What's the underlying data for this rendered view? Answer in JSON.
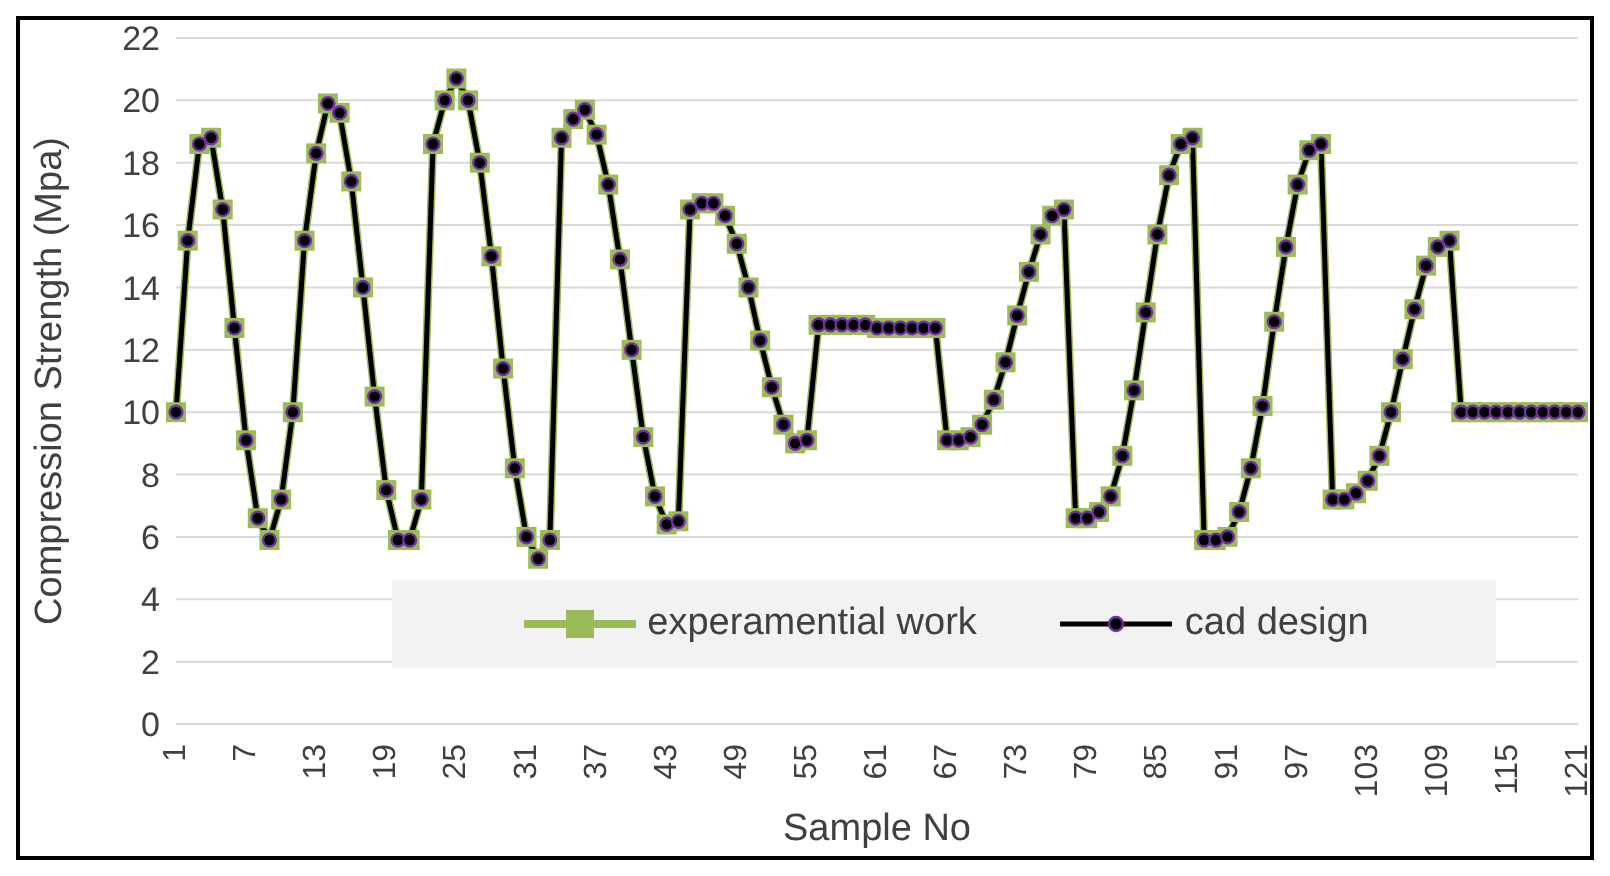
{
  "chart_data": {
    "type": "line",
    "xlabel": "Sample No",
    "ylabel": "Compression  Strength (Mpa)",
    "categories": [
      "1",
      null,
      null,
      null,
      null,
      null,
      "7",
      null,
      null,
      null,
      null,
      null,
      "13",
      null,
      null,
      null,
      null,
      null,
      "19",
      null,
      null,
      null,
      null,
      null,
      "25",
      null,
      null,
      null,
      null,
      null,
      "31",
      null,
      null,
      null,
      null,
      null,
      "37",
      null,
      null,
      null,
      null,
      null,
      "43",
      null,
      null,
      null,
      null,
      null,
      "49",
      null,
      null,
      null,
      null,
      null,
      "55",
      null,
      null,
      null,
      null,
      null,
      "61",
      null,
      null,
      null,
      null,
      null,
      "67",
      null,
      null,
      null,
      null,
      null,
      "73",
      null,
      null,
      null,
      null,
      null,
      "79",
      null,
      null,
      null,
      null,
      null,
      "85",
      null,
      null,
      null,
      null,
      null,
      "91",
      null,
      null,
      null,
      null,
      null,
      "97",
      null,
      null,
      null,
      null,
      null,
      "103",
      null,
      null,
      null,
      null,
      null,
      "109",
      null,
      null,
      null,
      null,
      null,
      "115",
      null,
      null,
      null,
      null,
      null,
      "121"
    ],
    "series": [
      {
        "name": "experamential work",
        "color": "#9bbb59",
        "marker": "square",
        "values": [
          10.0,
          15.5,
          18.6,
          18.8,
          16.5,
          12.7,
          9.1,
          6.6,
          5.9,
          7.2,
          10.0,
          15.5,
          18.3,
          19.9,
          19.6,
          17.4,
          14.0,
          10.5,
          7.5,
          5.9,
          5.9,
          7.2,
          18.6,
          20.0,
          20.7,
          20.0,
          18.0,
          15.0,
          11.4,
          8.2,
          6.0,
          5.3,
          5.9,
          18.8,
          19.4,
          19.7,
          18.9,
          17.3,
          14.9,
          12.0,
          9.2,
          7.3,
          6.4,
          6.5,
          16.5,
          16.7,
          16.7,
          16.3,
          15.4,
          14.0,
          12.3,
          10.8,
          9.6,
          9.0,
          9.1,
          12.8,
          12.8,
          12.8,
          12.8,
          12.8,
          12.7,
          12.7,
          12.7,
          12.7,
          12.7,
          12.7,
          9.1,
          9.1,
          9.2,
          9.6,
          10.4,
          11.6,
          13.1,
          14.5,
          15.7,
          16.3,
          16.5,
          6.6,
          6.6,
          6.8,
          7.3,
          8.6,
          10.7,
          13.2,
          15.7,
          17.6,
          18.6,
          18.8,
          5.9,
          5.9,
          6.0,
          6.8,
          8.2,
          10.2,
          12.9,
          15.3,
          17.3,
          18.4,
          18.6,
          7.2,
          7.2,
          7.4,
          7.8,
          8.6,
          10.0,
          11.7,
          13.3,
          14.7,
          15.3,
          15.5,
          10.0,
          10.0,
          10.0,
          10.0,
          10.0,
          10.0,
          10.0,
          10.0,
          10.0,
          10.0,
          10.0
        ]
      },
      {
        "name": "cad design",
        "color": "#000000",
        "marker": "circle",
        "values": [
          10.0,
          15.5,
          18.6,
          18.8,
          16.5,
          12.7,
          9.1,
          6.6,
          5.9,
          7.2,
          10.0,
          15.5,
          18.3,
          19.9,
          19.6,
          17.4,
          14.0,
          10.5,
          7.5,
          5.9,
          5.9,
          7.2,
          18.6,
          20.0,
          20.7,
          20.0,
          18.0,
          15.0,
          11.4,
          8.2,
          6.0,
          5.3,
          5.9,
          18.8,
          19.4,
          19.7,
          18.9,
          17.3,
          14.9,
          12.0,
          9.2,
          7.3,
          6.4,
          6.5,
          16.5,
          16.7,
          16.7,
          16.3,
          15.4,
          14.0,
          12.3,
          10.8,
          9.6,
          9.0,
          9.1,
          12.8,
          12.8,
          12.8,
          12.8,
          12.8,
          12.7,
          12.7,
          12.7,
          12.7,
          12.7,
          12.7,
          9.1,
          9.1,
          9.2,
          9.6,
          10.4,
          11.6,
          13.1,
          14.5,
          15.7,
          16.3,
          16.5,
          6.6,
          6.6,
          6.8,
          7.3,
          8.6,
          10.7,
          13.2,
          15.7,
          17.6,
          18.6,
          18.8,
          5.9,
          5.9,
          6.0,
          6.8,
          8.2,
          10.2,
          12.9,
          15.3,
          17.3,
          18.4,
          18.6,
          7.2,
          7.2,
          7.4,
          7.8,
          8.6,
          10.0,
          11.7,
          13.3,
          14.7,
          15.3,
          15.5,
          10.0,
          10.0,
          10.0,
          10.0,
          10.0,
          10.0,
          10.0,
          10.0,
          10.0,
          10.0,
          10.0
        ]
      }
    ],
    "ylim": [
      0,
      22
    ],
    "yticks": [
      0,
      2,
      4,
      6,
      8,
      10,
      12,
      14,
      16,
      18,
      20,
      22
    ],
    "grid": "y",
    "legend": "bottom"
  }
}
